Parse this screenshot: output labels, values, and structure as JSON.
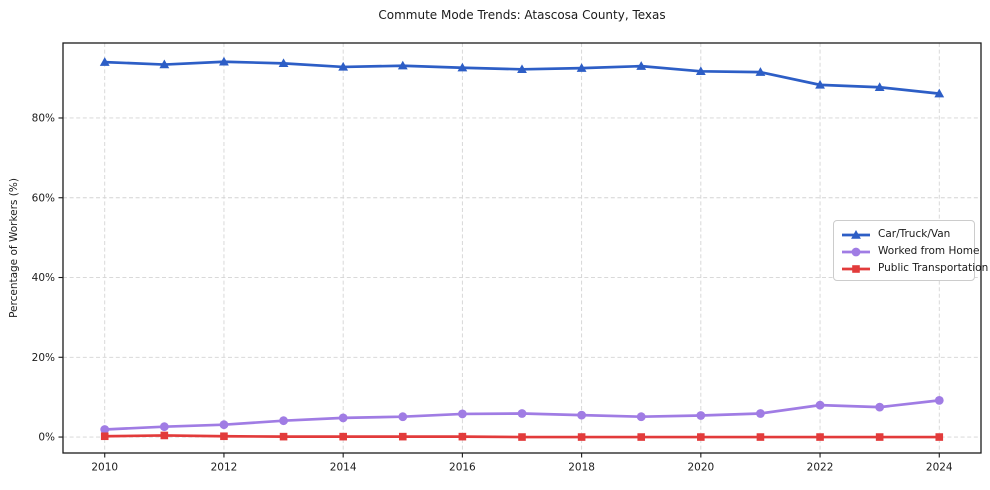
{
  "title": "Commute Mode Trends: Atascosa County, Texas",
  "chart_data": {
    "type": "line",
    "title": "Commute Mode Trends: Atascosa County, Texas",
    "xlabel": "",
    "ylabel": "Percentage of Workers (%)",
    "x": [
      2010,
      2011,
      2012,
      2013,
      2014,
      2015,
      2016,
      2017,
      2018,
      2019,
      2020,
      2021,
      2022,
      2023,
      2024
    ],
    "series": [
      {
        "name": "Car/Truck/Van",
        "color": "#2d5ec6",
        "marker": "triangle",
        "values": [
          94.0,
          93.4,
          94.1,
          93.7,
          92.8,
          93.1,
          92.6,
          92.2,
          92.5,
          93.0,
          91.7,
          91.5,
          88.3,
          87.7,
          86.1
        ]
      },
      {
        "name": "Worked from Home",
        "color": "#a07ce4",
        "marker": "circle",
        "values": [
          1.9,
          2.6,
          3.1,
          4.1,
          4.8,
          5.1,
          5.8,
          5.9,
          5.5,
          5.1,
          5.4,
          5.9,
          8.0,
          7.5,
          9.2
        ]
      },
      {
        "name": "Public Transportation",
        "color": "#e23b3b",
        "marker": "square",
        "values": [
          0.2,
          0.4,
          0.2,
          0.1,
          0.1,
          0.1,
          0.1,
          0.0,
          0.0,
          0.0,
          0.0,
          0.0,
          0.0,
          0.0,
          0.0
        ]
      }
    ],
    "xticks": [
      2010,
      2012,
      2014,
      2016,
      2018,
      2020,
      2022,
      2024
    ],
    "xtick_labels": [
      "2010",
      "2012",
      "2014",
      "2016",
      "2018",
      "2020",
      "2022",
      "2024"
    ],
    "yticks": [
      0,
      20,
      40,
      60,
      80
    ],
    "ytick_labels": [
      "0%",
      "20%",
      "40%",
      "60%",
      "80%"
    ],
    "xlim": [
      2009.3,
      2024.7
    ],
    "ylim": [
      -4.0,
      98.8
    ],
    "grid": true,
    "grid_style": "dashed",
    "legend_position": "center-right",
    "colors": {
      "grid": "#d4d4d4",
      "spine": "#1b1b1b",
      "text": "#1b1b1b",
      "legend_border": "#cccccc"
    }
  }
}
